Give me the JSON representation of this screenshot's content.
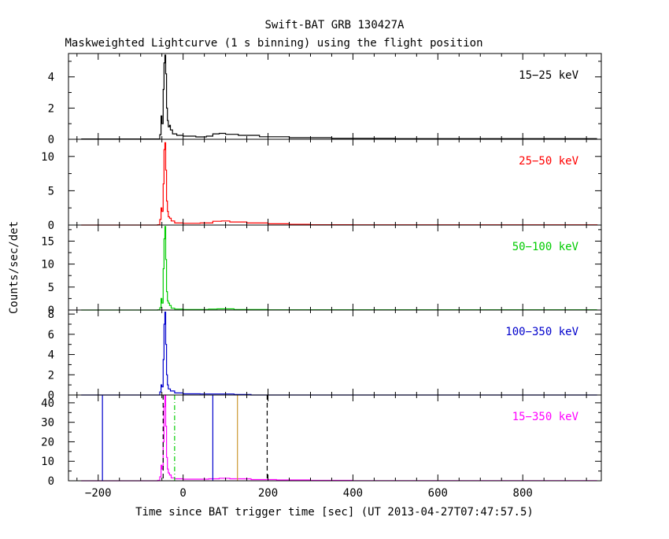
{
  "chart_data": {
    "type": "line",
    "title": "Swift-BAT GRB 130427A",
    "subtitle": "Maskweighted Lightcurve (1 s binning) using the flight position",
    "xlabel": "Time since BAT trigger time [sec] (UT 2013-04-27T07:47:57.5)",
    "ylabel": "Counts/sec/det",
    "xlim": [
      -270,
      985
    ],
    "x_ticks": [
      -200,
      0,
      200,
      400,
      600,
      800
    ],
    "x_tick_labels": [
      "−200",
      "0",
      "200",
      "400",
      "600",
      "800"
    ],
    "grid": false,
    "panels": [
      {
        "label": "15−25 keV",
        "color": "#000000",
        "ylim": [
          0,
          5.5
        ],
        "y_ticks": [
          0,
          2,
          4
        ],
        "profile": [
          [
            -240,
            0.02
          ],
          [
            -60,
            0.02
          ],
          [
            -55,
            0.3
          ],
          [
            -52,
            1.5
          ],
          [
            -50,
            1.0
          ],
          [
            -47,
            3.2
          ],
          [
            -45,
            4.9
          ],
          [
            -43,
            5.4
          ],
          [
            -41,
            4.2
          ],
          [
            -39,
            2.0
          ],
          [
            -37,
            1.2
          ],
          [
            -35,
            0.8
          ],
          [
            -32,
            0.9
          ],
          [
            -30,
            0.6
          ],
          [
            -25,
            0.35
          ],
          [
            -15,
            0.25
          ],
          [
            0,
            0.2
          ],
          [
            30,
            0.15
          ],
          [
            55,
            0.2
          ],
          [
            70,
            0.35
          ],
          [
            85,
            0.38
          ],
          [
            100,
            0.32
          ],
          [
            130,
            0.25
          ],
          [
            180,
            0.16
          ],
          [
            250,
            0.1
          ],
          [
            350,
            0.06
          ],
          [
            500,
            0.04
          ],
          [
            700,
            0.04
          ],
          [
            975,
            0.04
          ]
        ]
      },
      {
        "label": "25−50 keV",
        "color": "#ff0000",
        "ylim": [
          0,
          12.5
        ],
        "y_ticks": [
          0,
          5,
          10
        ],
        "profile": [
          [
            -240,
            0.0
          ],
          [
            -60,
            0.05
          ],
          [
            -55,
            0.8
          ],
          [
            -52,
            2.5
          ],
          [
            -50,
            2.0
          ],
          [
            -47,
            6.0
          ],
          [
            -45,
            11.0
          ],
          [
            -43,
            12.0
          ],
          [
            -41,
            8.0
          ],
          [
            -39,
            3.5
          ],
          [
            -37,
            2.0
          ],
          [
            -35,
            1.2
          ],
          [
            -32,
            1.0
          ],
          [
            -28,
            0.6
          ],
          [
            -20,
            0.3
          ],
          [
            0,
            0.25
          ],
          [
            40,
            0.3
          ],
          [
            70,
            0.55
          ],
          [
            90,
            0.6
          ],
          [
            110,
            0.45
          ],
          [
            150,
            0.3
          ],
          [
            200,
            0.18
          ],
          [
            250,
            0.1
          ],
          [
            300,
            0.05
          ],
          [
            400,
            0.03
          ],
          [
            975,
            0.0
          ]
        ]
      },
      {
        "label": "50−100 keV",
        "color": "#00cc00",
        "ylim": [
          0,
          18.5
        ],
        "y_ticks": [
          0,
          5,
          10,
          15
        ],
        "profile": [
          [
            -240,
            0.0
          ],
          [
            -60,
            0.05
          ],
          [
            -55,
            0.5
          ],
          [
            -52,
            2.5
          ],
          [
            -50,
            1.5
          ],
          [
            -47,
            9.0
          ],
          [
            -45,
            15.5
          ],
          [
            -43,
            18.2
          ],
          [
            -41,
            11.0
          ],
          [
            -39,
            4.0
          ],
          [
            -37,
            2.0
          ],
          [
            -35,
            1.5
          ],
          [
            -32,
            1.0
          ],
          [
            -28,
            0.4
          ],
          [
            -20,
            0.2
          ],
          [
            0,
            0.1
          ],
          [
            60,
            0.2
          ],
          [
            80,
            0.25
          ],
          [
            120,
            0.1
          ],
          [
            200,
            0.05
          ],
          [
            975,
            0.05
          ]
        ]
      },
      {
        "label": "100−350 keV",
        "color": "#0000cc",
        "ylim": [
          0,
          8.4
        ],
        "y_ticks": [
          0,
          2,
          4,
          6,
          8
        ],
        "profile": [
          [
            -240,
            0.0
          ],
          [
            -60,
            0.0
          ],
          [
            -55,
            0.3
          ],
          [
            -52,
            1.0
          ],
          [
            -50,
            0.8
          ],
          [
            -47,
            3.5
          ],
          [
            -45,
            7.0
          ],
          [
            -43,
            8.2
          ],
          [
            -41,
            5.0
          ],
          [
            -39,
            2.0
          ],
          [
            -37,
            1.0
          ],
          [
            -35,
            0.6
          ],
          [
            -30,
            0.4
          ],
          [
            -20,
            0.2
          ],
          [
            0,
            0.12
          ],
          [
            40,
            0.1
          ],
          [
            100,
            0.1
          ],
          [
            120,
            0.05
          ],
          [
            160,
            0.0
          ],
          [
            975,
            0.0
          ]
        ]
      },
      {
        "label": "15−350 keV",
        "color": "#ff00ff",
        "ylim": [
          0,
          44
        ],
        "y_ticks": [
          0,
          10,
          20,
          30,
          40
        ],
        "profile": [
          [
            -240,
            0.0
          ],
          [
            -60,
            0.2
          ],
          [
            -55,
            2.0
          ],
          [
            -52,
            8.0
          ],
          [
            -50,
            6.0
          ],
          [
            -47,
            20.0
          ],
          [
            -45,
            38.0
          ],
          [
            -43,
            44.0
          ],
          [
            -41,
            28.0
          ],
          [
            -39,
            12.0
          ],
          [
            -37,
            6.0
          ],
          [
            -35,
            4.0
          ],
          [
            -32,
            3.0
          ],
          [
            -28,
            1.5
          ],
          [
            -20,
            1.0
          ],
          [
            0,
            0.8
          ],
          [
            60,
            1.0
          ],
          [
            85,
            1.3
          ],
          [
            110,
            1.0
          ],
          [
            160,
            0.6
          ],
          [
            220,
            0.4
          ],
          [
            300,
            0.2
          ],
          [
            400,
            0.1
          ],
          [
            600,
            0.05
          ],
          [
            975,
            0.05
          ]
        ]
      }
    ],
    "time_markers": [
      {
        "x": -190,
        "color": "#0000cc",
        "style": "solid"
      },
      {
        "x": -47,
        "color": "#000000",
        "style": "dashed"
      },
      {
        "x": -20,
        "color": "#00cc00",
        "style": "dashdot"
      },
      {
        "x": 70,
        "color": "#0000cc",
        "style": "solid"
      },
      {
        "x": 128,
        "color": "#cc9933",
        "style": "solid"
      },
      {
        "x": 198,
        "color": "#000000",
        "style": "dashed"
      }
    ]
  }
}
